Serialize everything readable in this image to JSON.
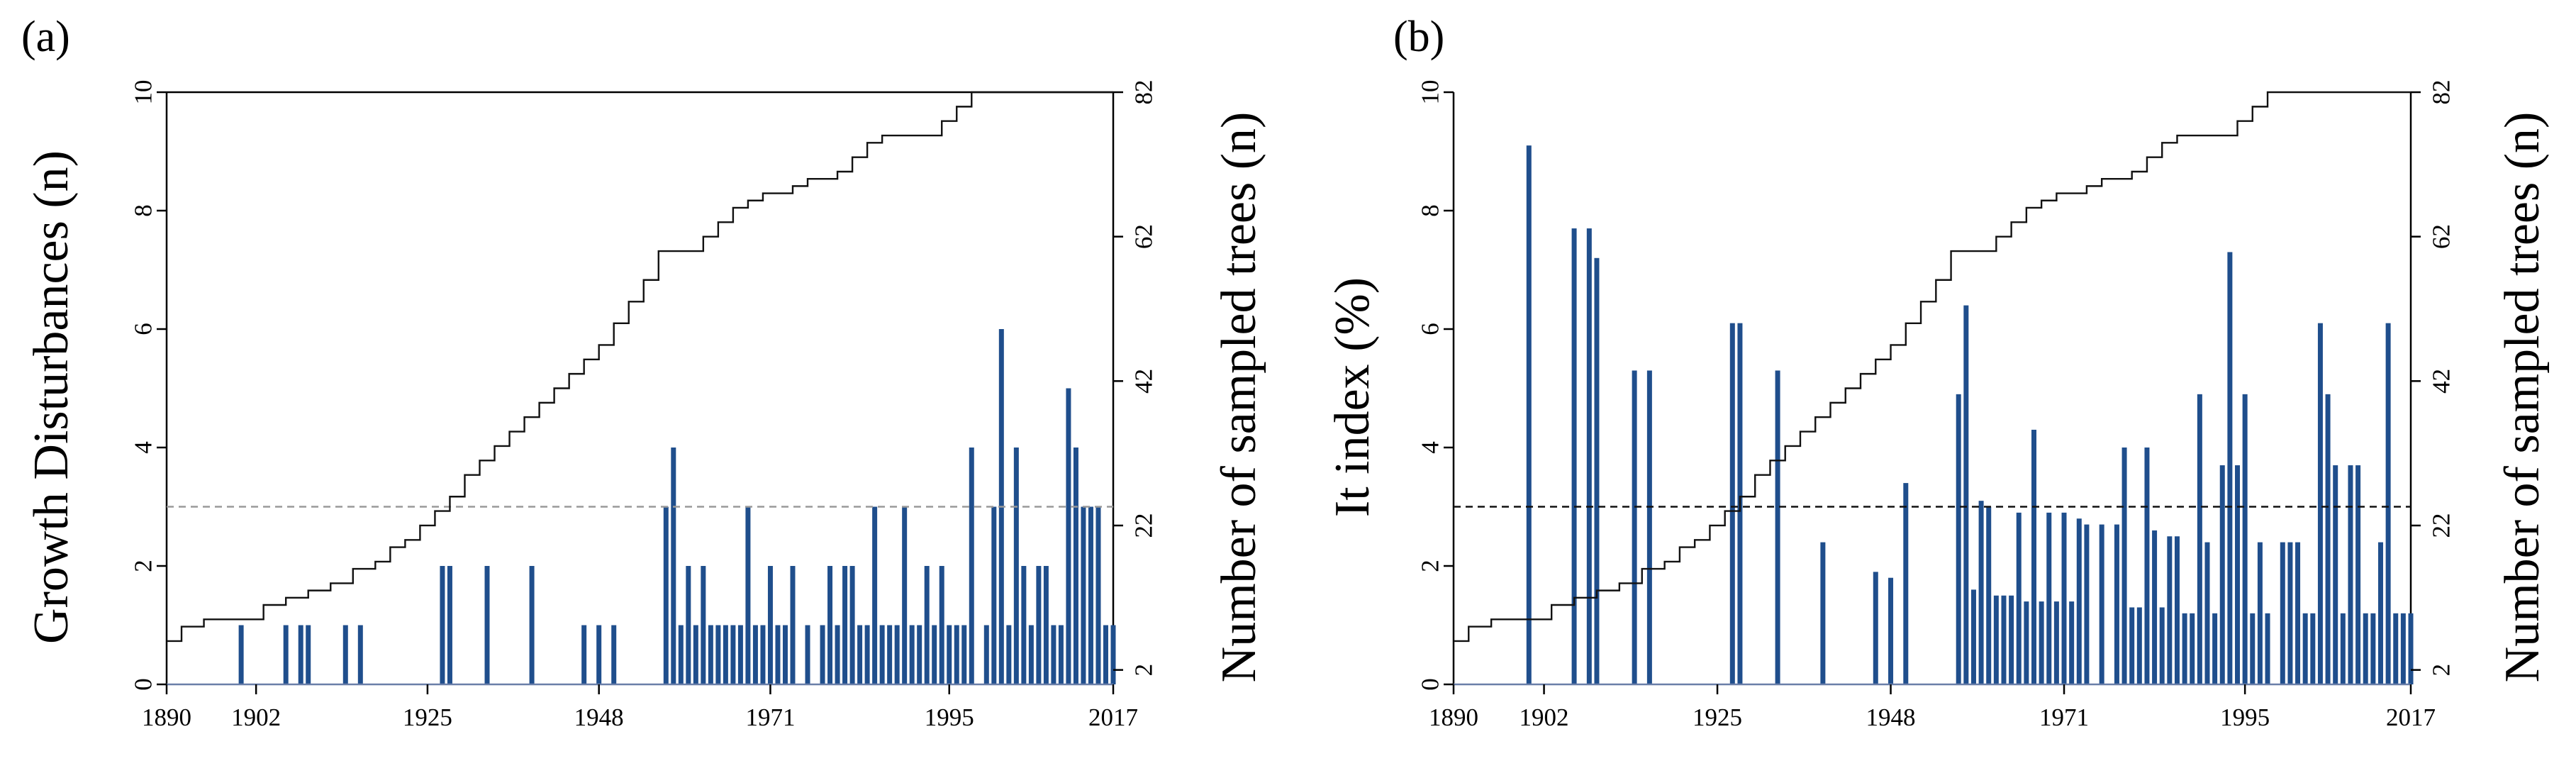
{
  "chart_data": [
    {
      "type": "bar",
      "panel_label": "(a)",
      "title": "",
      "xlabel": "",
      "ylabel": "Growth Disturbances (n)",
      "y2label": "Number of sampled trees (n)",
      "xlim": [
        1890,
        2017
      ],
      "ylim": [
        0,
        10
      ],
      "y2lim": [
        0,
        82
      ],
      "xticks": [
        "1890",
        "1902",
        "1925",
        "1948",
        "1971",
        "1995",
        "2017"
      ],
      "yticks": [
        "0",
        "2",
        "4",
        "6",
        "8",
        "10"
      ],
      "y2ticks": [
        "2",
        "22",
        "42",
        "62",
        "82"
      ],
      "threshold": 3,
      "bars": {
        "x": [
          1900,
          1906,
          1908,
          1909,
          1914,
          1916,
          1927,
          1928,
          1933,
          1939,
          1946,
          1948,
          1950,
          1957,
          1958,
          1959,
          1960,
          1961,
          1962,
          1963,
          1964,
          1965,
          1966,
          1967,
          1968,
          1969,
          1970,
          1971,
          1972,
          1973,
          1974,
          1976,
          1978,
          1979,
          1980,
          1981,
          1982,
          1983,
          1984,
          1985,
          1986,
          1987,
          1988,
          1989,
          1990,
          1991,
          1992,
          1993,
          1994,
          1995,
          1996,
          1997,
          1998,
          2000,
          2001,
          2002,
          2003,
          2004,
          2005,
          2006,
          2007,
          2008,
          2009,
          2010,
          2011,
          2012,
          2013,
          2014,
          2015,
          2016,
          2017
        ],
        "values": [
          1,
          1,
          1,
          1,
          1,
          1,
          2,
          2,
          2,
          2,
          1,
          1,
          1,
          3,
          4,
          1,
          2,
          1,
          2,
          1,
          1,
          1,
          1,
          1,
          3,
          1,
          1,
          2,
          1,
          1,
          2,
          1,
          1,
          2,
          1,
          2,
          2,
          1,
          1,
          3,
          1,
          1,
          1,
          3,
          1,
          1,
          2,
          1,
          2,
          1,
          1,
          1,
          4,
          1,
          3,
          6,
          1,
          4,
          2,
          1,
          2,
          2,
          1,
          1,
          5,
          4,
          3,
          3,
          3,
          1,
          1
        ]
      },
      "cumulative_trees": {
        "x": [
          1890,
          1892,
          1895,
          1900,
          1903,
          1906,
          1909,
          1912,
          1915,
          1918,
          1920,
          1922,
          1924,
          1926,
          1928,
          1930,
          1932,
          1934,
          1936,
          1938,
          1940,
          1942,
          1944,
          1946,
          1948,
          1950,
          1952,
          1954,
          1956,
          1958,
          1960,
          1962,
          1964,
          1966,
          1968,
          1970,
          1972,
          1974,
          1976,
          1978,
          1980,
          1982,
          1984,
          1986,
          1988,
          1990,
          1992,
          1994,
          1996,
          1998,
          2000,
          2003,
          2006,
          2009,
          2012,
          2015,
          2017
        ],
        "values": [
          6,
          8,
          9,
          9,
          11,
          12,
          13,
          14,
          16,
          17,
          19,
          20,
          22,
          24,
          26,
          29,
          31,
          33,
          35,
          37,
          39,
          41,
          43,
          45,
          47,
          50,
          53,
          56,
          60,
          60,
          60,
          62,
          64,
          66,
          67,
          68,
          68,
          69,
          70,
          70,
          71,
          73,
          75,
          76,
          76,
          76,
          76,
          78,
          80,
          82,
          82,
          82,
          82,
          82,
          82,
          82,
          82
        ]
      }
    },
    {
      "type": "bar",
      "panel_label": "(b)",
      "title": "",
      "xlabel": "",
      "ylabel": "It index (%)",
      "y2label": "Number of sampled trees (n)",
      "xlim": [
        1890,
        2017
      ],
      "ylim": [
        0,
        10
      ],
      "y2lim": [
        0,
        82
      ],
      "xticks": [
        "1890",
        "1902",
        "1925",
        "1948",
        "1971",
        "1995",
        "2017"
      ],
      "yticks": [
        "0",
        "2",
        "4",
        "6",
        "8",
        "10"
      ],
      "y2ticks": [
        "2",
        "22",
        "42",
        "62",
        "82"
      ],
      "threshold": 3,
      "bars": {
        "x": [
          1900,
          1906,
          1908,
          1909,
          1914,
          1916,
          1927,
          1928,
          1933,
          1939,
          1946,
          1948,
          1950,
          1957,
          1958,
          1959,
          1960,
          1961,
          1962,
          1963,
          1964,
          1965,
          1966,
          1967,
          1968,
          1969,
          1970,
          1971,
          1972,
          1973,
          1974,
          1976,
          1978,
          1979,
          1980,
          1981,
          1982,
          1983,
          1984,
          1985,
          1986,
          1987,
          1988,
          1989,
          1990,
          1991,
          1992,
          1993,
          1994,
          1995,
          1996,
          1997,
          1998,
          2000,
          2001,
          2002,
          2003,
          2004,
          2005,
          2006,
          2007,
          2008,
          2009,
          2010,
          2011,
          2012,
          2013,
          2014,
          2015,
          2016,
          2017
        ],
        "values": [
          9.1,
          7.7,
          7.7,
          7.2,
          5.3,
          5.3,
          6.1,
          6.1,
          5.3,
          2.4,
          1.9,
          1.8,
          3.4,
          4.9,
          6.4,
          1.6,
          3.1,
          3.0,
          1.5,
          1.5,
          1.5,
          2.9,
          1.4,
          4.3,
          1.4,
          2.9,
          1.4,
          2.9,
          1.4,
          2.8,
          2.7,
          2.7,
          2.7,
          4.0,
          1.3,
          1.3,
          4.0,
          2.6,
          1.3,
          2.5,
          2.5,
          1.2,
          1.2,
          4.9,
          2.4,
          1.2,
          3.7,
          7.3,
          3.7,
          4.9,
          1.2,
          2.4,
          1.2,
          2.4,
          2.4,
          2.4,
          1.2,
          1.2,
          6.1,
          4.9,
          3.7,
          1.2,
          3.7,
          3.7,
          1.2,
          1.2,
          2.4,
          6.1,
          1.2,
          1.2,
          1.2
        ]
      },
      "cumulative_trees": {
        "x": [
          1890,
          1892,
          1895,
          1900,
          1903,
          1906,
          1909,
          1912,
          1915,
          1918,
          1920,
          1922,
          1924,
          1926,
          1928,
          1930,
          1932,
          1934,
          1936,
          1938,
          1940,
          1942,
          1944,
          1946,
          1948,
          1950,
          1952,
          1954,
          1956,
          1958,
          1960,
          1962,
          1964,
          1966,
          1968,
          1970,
          1972,
          1974,
          1976,
          1978,
          1980,
          1982,
          1984,
          1986,
          1988,
          1990,
          1992,
          1994,
          1996,
          1998,
          2000,
          2003,
          2006,
          2009,
          2012,
          2015,
          2017
        ],
        "values": [
          6,
          8,
          9,
          9,
          11,
          12,
          13,
          14,
          16,
          17,
          19,
          20,
          22,
          24,
          26,
          29,
          31,
          33,
          35,
          37,
          39,
          41,
          43,
          45,
          47,
          50,
          53,
          56,
          60,
          60,
          60,
          62,
          64,
          66,
          67,
          68,
          68,
          69,
          70,
          70,
          71,
          73,
          75,
          76,
          76,
          76,
          76,
          78,
          80,
          82,
          82,
          82,
          82,
          82,
          82,
          82,
          82
        ]
      }
    }
  ]
}
